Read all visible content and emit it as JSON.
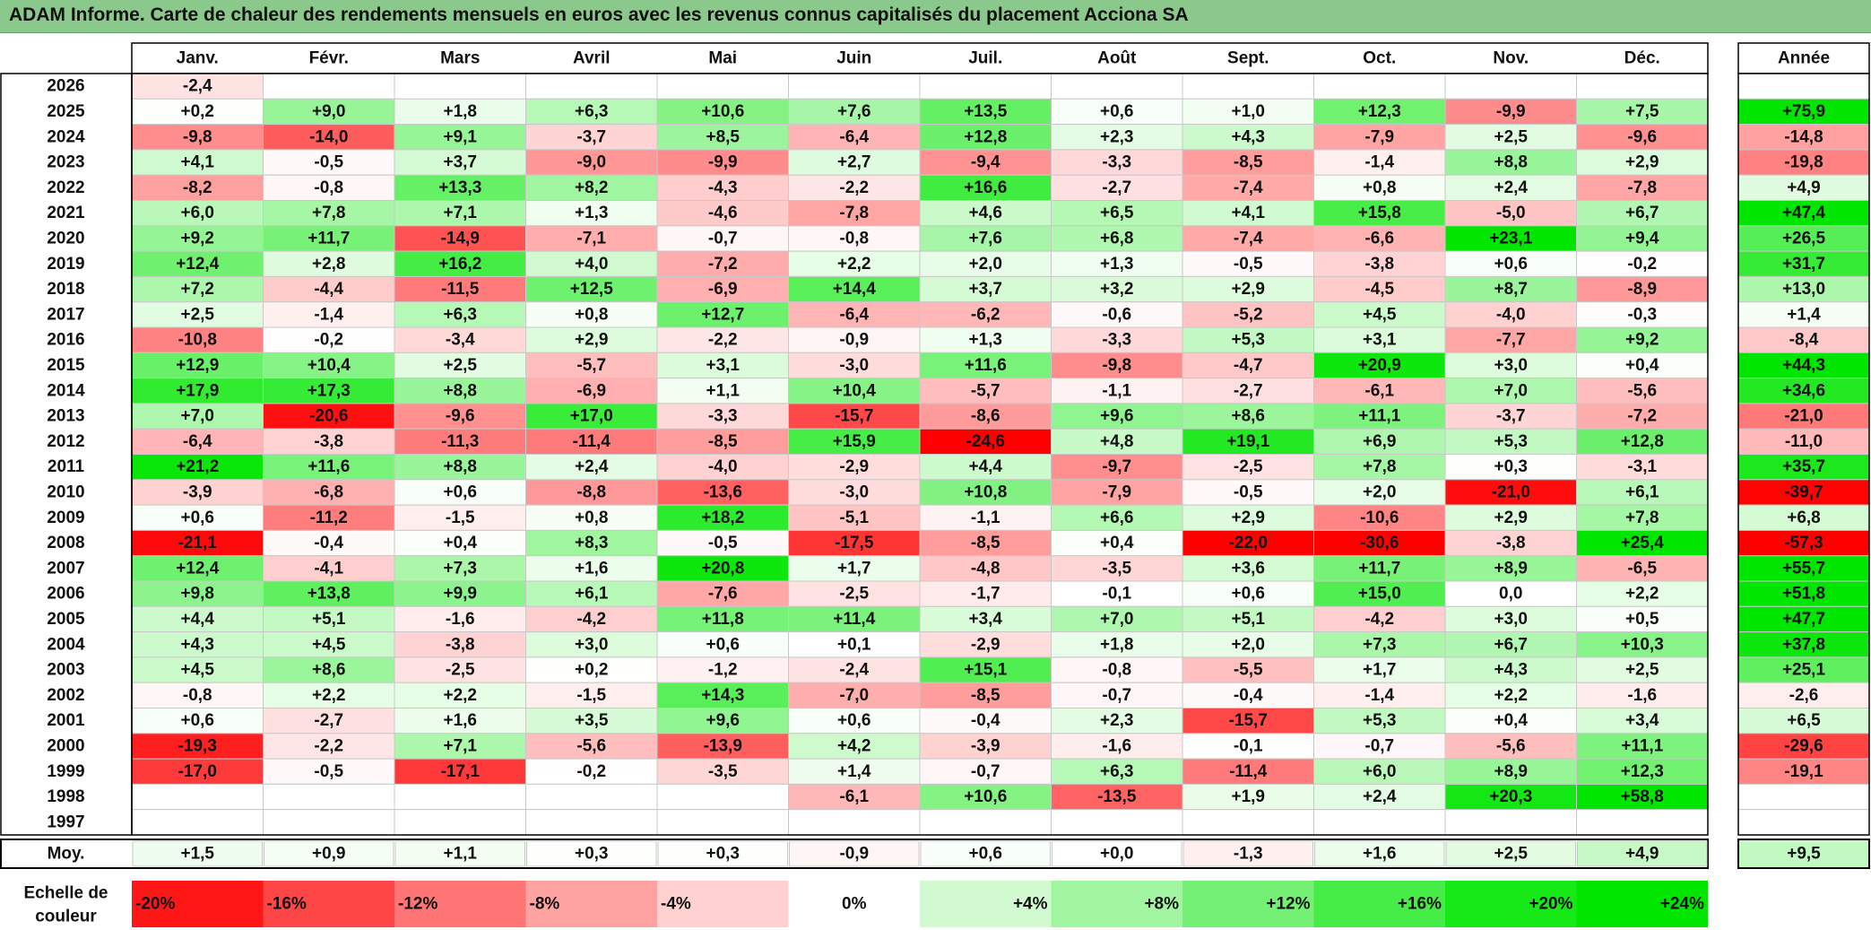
{
  "title": "ADAM Informe. Carte de chaleur des rendements mensuels en euros avec les revenus connus capitalisés du placement Acciona SA",
  "chart_data": {
    "type": "heatmap",
    "title": "ADAM Informe. Carte de chaleur des rendements mensuels en euros avec les revenus connus capitalisés du placement Acciona SA",
    "months": [
      "Janv.",
      "Févr.",
      "Mars",
      "Avril",
      "Mai",
      "Juin",
      "Juil.",
      "Août",
      "Sept.",
      "Oct.",
      "Nov.",
      "Déc."
    ],
    "year_header": "Année",
    "rows": [
      {
        "year": "2026",
        "months": [
          "-2,4",
          "",
          "",
          "",
          "",
          "",
          "",
          "",
          "",
          "",
          "",
          ""
        ],
        "annual": ""
      },
      {
        "year": "2025",
        "months": [
          "+0,2",
          "+9,0",
          "+1,8",
          "+6,3",
          "+10,6",
          "+7,6",
          "+13,5",
          "+0,6",
          "+1,0",
          "+12,3",
          "-9,9",
          "+7,5"
        ],
        "annual": "+75,9"
      },
      {
        "year": "2024",
        "months": [
          "-9,8",
          "-14,0",
          "+9,1",
          "-3,7",
          "+8,5",
          "-6,4",
          "+12,8",
          "+2,3",
          "+4,3",
          "-7,9",
          "+2,5",
          "-9,6"
        ],
        "annual": "-14,8"
      },
      {
        "year": "2023",
        "months": [
          "+4,1",
          "-0,5",
          "+3,7",
          "-9,0",
          "-9,9",
          "+2,7",
          "-9,4",
          "-3,3",
          "-8,5",
          "-1,4",
          "+8,8",
          "+2,9"
        ],
        "annual": "-19,8"
      },
      {
        "year": "2022",
        "months": [
          "-8,2",
          "-0,8",
          "+13,3",
          "+8,2",
          "-4,3",
          "-2,2",
          "+16,6",
          "-2,7",
          "-7,4",
          "+0,8",
          "+2,4",
          "-7,8"
        ],
        "annual": "+4,9"
      },
      {
        "year": "2021",
        "months": [
          "+6,0",
          "+7,8",
          "+7,1",
          "+1,3",
          "-4,6",
          "-7,8",
          "+4,6",
          "+6,5",
          "+4,1",
          "+15,8",
          "-5,0",
          "+6,7"
        ],
        "annual": "+47,4"
      },
      {
        "year": "2020",
        "months": [
          "+9,2",
          "+11,7",
          "-14,9",
          "-7,1",
          "-0,7",
          "-0,8",
          "+7,6",
          "+6,8",
          "-7,4",
          "-6,6",
          "+23,1",
          "+9,4"
        ],
        "annual": "+26,5"
      },
      {
        "year": "2019",
        "months": [
          "+12,4",
          "+2,8",
          "+16,2",
          "+4,0",
          "-7,2",
          "+2,2",
          "+2,0",
          "+1,3",
          "-0,5",
          "-3,8",
          "+0,6",
          "-0,2"
        ],
        "annual": "+31,7"
      },
      {
        "year": "2018",
        "months": [
          "+7,2",
          "-4,4",
          "-11,5",
          "+12,5",
          "-6,9",
          "+14,4",
          "+3,7",
          "+3,2",
          "+2,9",
          "-4,5",
          "+8,7",
          "-8,9"
        ],
        "annual": "+13,0"
      },
      {
        "year": "2017",
        "months": [
          "+2,5",
          "-1,4",
          "+6,3",
          "+0,8",
          "+12,7",
          "-6,4",
          "-6,2",
          "-0,6",
          "-5,2",
          "+4,5",
          "-4,0",
          "-0,3"
        ],
        "annual": "+1,4"
      },
      {
        "year": "2016",
        "months": [
          "-10,8",
          "-0,2",
          "-3,4",
          "+2,9",
          "-2,2",
          "-0,9",
          "+1,3",
          "-3,3",
          "+5,3",
          "+3,1",
          "-7,7",
          "+9,2"
        ],
        "annual": "-8,4"
      },
      {
        "year": "2015",
        "months": [
          "+12,9",
          "+10,4",
          "+2,5",
          "-5,7",
          "+3,1",
          "-3,0",
          "+11,6",
          "-9,8",
          "-4,7",
          "+20,9",
          "+3,0",
          "+0,4"
        ],
        "annual": "+44,3"
      },
      {
        "year": "2014",
        "months": [
          "+17,9",
          "+17,3",
          "+8,8",
          "-6,9",
          "+1,1",
          "+10,4",
          "-5,7",
          "-1,1",
          "-2,7",
          "-6,1",
          "+7,0",
          "-5,6"
        ],
        "annual": "+34,6"
      },
      {
        "year": "2013",
        "months": [
          "+7,0",
          "-20,6",
          "-9,6",
          "+17,0",
          "-3,3",
          "-15,7",
          "-8,6",
          "+9,6",
          "+8,6",
          "+11,1",
          "-3,7",
          "-7,2"
        ],
        "annual": "-21,0"
      },
      {
        "year": "2012",
        "months": [
          "-6,4",
          "-3,8",
          "-11,3",
          "-11,4",
          "-8,5",
          "+15,9",
          "-24,6",
          "+4,8",
          "+19,1",
          "+6,9",
          "+5,3",
          "+12,8"
        ],
        "annual": "-11,0"
      },
      {
        "year": "2011",
        "months": [
          "+21,2",
          "+11,6",
          "+8,8",
          "+2,4",
          "-4,0",
          "-2,9",
          "+4,4",
          "-9,7",
          "-2,5",
          "+7,8",
          "+0,3",
          "-3,1"
        ],
        "annual": "+35,7"
      },
      {
        "year": "2010",
        "months": [
          "-3,9",
          "-6,8",
          "+0,6",
          "-8,8",
          "-13,6",
          "-3,0",
          "+10,8",
          "-7,9",
          "-0,5",
          "+2,0",
          "-21,0",
          "+6,1"
        ],
        "annual": "-39,7"
      },
      {
        "year": "2009",
        "months": [
          "+0,6",
          "-11,2",
          "-1,5",
          "+0,8",
          "+18,2",
          "-5,1",
          "-1,1",
          "+6,6",
          "+2,9",
          "-10,6",
          "+2,9",
          "+7,8"
        ],
        "annual": "+6,8"
      },
      {
        "year": "2008",
        "months": [
          "-21,1",
          "-0,4",
          "+0,4",
          "+8,3",
          "-0,5",
          "-17,5",
          "-8,5",
          "+0,4",
          "-22,0",
          "-30,6",
          "-3,8",
          "+25,4"
        ],
        "annual": "-57,3"
      },
      {
        "year": "2007",
        "months": [
          "+12,4",
          "-4,1",
          "+7,3",
          "+1,6",
          "+20,8",
          "+1,7",
          "-4,8",
          "-3,5",
          "+3,6",
          "+11,7",
          "+8,9",
          "-6,5"
        ],
        "annual": "+55,7"
      },
      {
        "year": "2006",
        "months": [
          "+9,8",
          "+13,8",
          "+9,9",
          "+6,1",
          "-7,6",
          "-2,5",
          "-1,7",
          "-0,1",
          "+0,6",
          "+15,0",
          "0,0",
          "+2,2"
        ],
        "annual": "+51,8"
      },
      {
        "year": "2005",
        "months": [
          "+4,4",
          "+5,1",
          "-1,6",
          "-4,2",
          "+11,8",
          "+11,4",
          "+3,4",
          "+7,0",
          "+5,1",
          "-4,2",
          "+3,0",
          "+0,5"
        ],
        "annual": "+47,7"
      },
      {
        "year": "2004",
        "months": [
          "+4,3",
          "+4,5",
          "-3,8",
          "+3,0",
          "+0,6",
          "+0,1",
          "-2,9",
          "+1,8",
          "+2,0",
          "+7,3",
          "+6,7",
          "+10,3"
        ],
        "annual": "+37,8"
      },
      {
        "year": "2003",
        "months": [
          "+4,5",
          "+8,6",
          "-2,5",
          "+0,2",
          "-1,2",
          "-2,4",
          "+15,1",
          "-0,8",
          "-5,5",
          "+1,7",
          "+4,3",
          "+2,5"
        ],
        "annual": "+25,1"
      },
      {
        "year": "2002",
        "months": [
          "-0,8",
          "+2,2",
          "+2,2",
          "-1,5",
          "+14,3",
          "-7,0",
          "-8,5",
          "-0,7",
          "-0,4",
          "-1,4",
          "+2,2",
          "-1,6"
        ],
        "annual": "-2,6"
      },
      {
        "year": "2001",
        "months": [
          "+0,6",
          "-2,7",
          "+1,6",
          "+3,5",
          "+9,6",
          "+0,6",
          "-0,4",
          "+2,3",
          "-15,7",
          "+5,3",
          "+0,4",
          "+3,4"
        ],
        "annual": "+6,5"
      },
      {
        "year": "2000",
        "months": [
          "-19,3",
          "-2,2",
          "+7,1",
          "-5,6",
          "-13,9",
          "+4,2",
          "-3,9",
          "-1,6",
          "-0,1",
          "-0,7",
          "-5,6",
          "+11,1"
        ],
        "annual": "-29,6"
      },
      {
        "year": "1999",
        "months": [
          "-17,0",
          "-0,5",
          "-17,1",
          "-0,2",
          "-3,5",
          "+1,4",
          "-0,7",
          "+6,3",
          "-11,4",
          "+6,0",
          "+8,9",
          "+12,3"
        ],
        "annual": "-19,1"
      },
      {
        "year": "1998",
        "months": [
          "",
          "",
          "",
          "",
          "",
          "-6,1",
          "+10,6",
          "-13,5",
          "+1,9",
          "+2,4",
          "+20,3",
          "+58,8"
        ],
        "annual": ""
      },
      {
        "year": "1997",
        "months": [
          "",
          "",
          "",
          "",
          "",
          "",
          "",
          "",
          "",
          "",
          "",
          ""
        ],
        "annual": ""
      }
    ],
    "average": {
      "label": "Moy.",
      "months": [
        "+1,5",
        "+0,9",
        "+1,1",
        "+0,3",
        "+0,3",
        "-0,9",
        "+0,6",
        "+0,0",
        "-1,3",
        "+1,6",
        "+2,5",
        "+4,9"
      ],
      "annual": "+9,5"
    },
    "scale": {
      "label_line1": "Echelle de",
      "label_line2": "couleur",
      "steps": [
        "-20%",
        "-16%",
        "-12%",
        "-8%",
        "-4%",
        "0%",
        "+4%",
        "+8%",
        "+12%",
        "+16%",
        "+20%",
        "+24%"
      ],
      "values": [
        -20,
        -16,
        -12,
        -8,
        -4,
        0,
        4,
        8,
        12,
        16,
        20,
        24
      ]
    },
    "colors": {
      "negative": "#ff0000",
      "neutral": "#ffffff",
      "positive": "#00e600",
      "title_bar": "#8bc88b",
      "grid": "#c8c8c8",
      "border": "#000000"
    }
  }
}
